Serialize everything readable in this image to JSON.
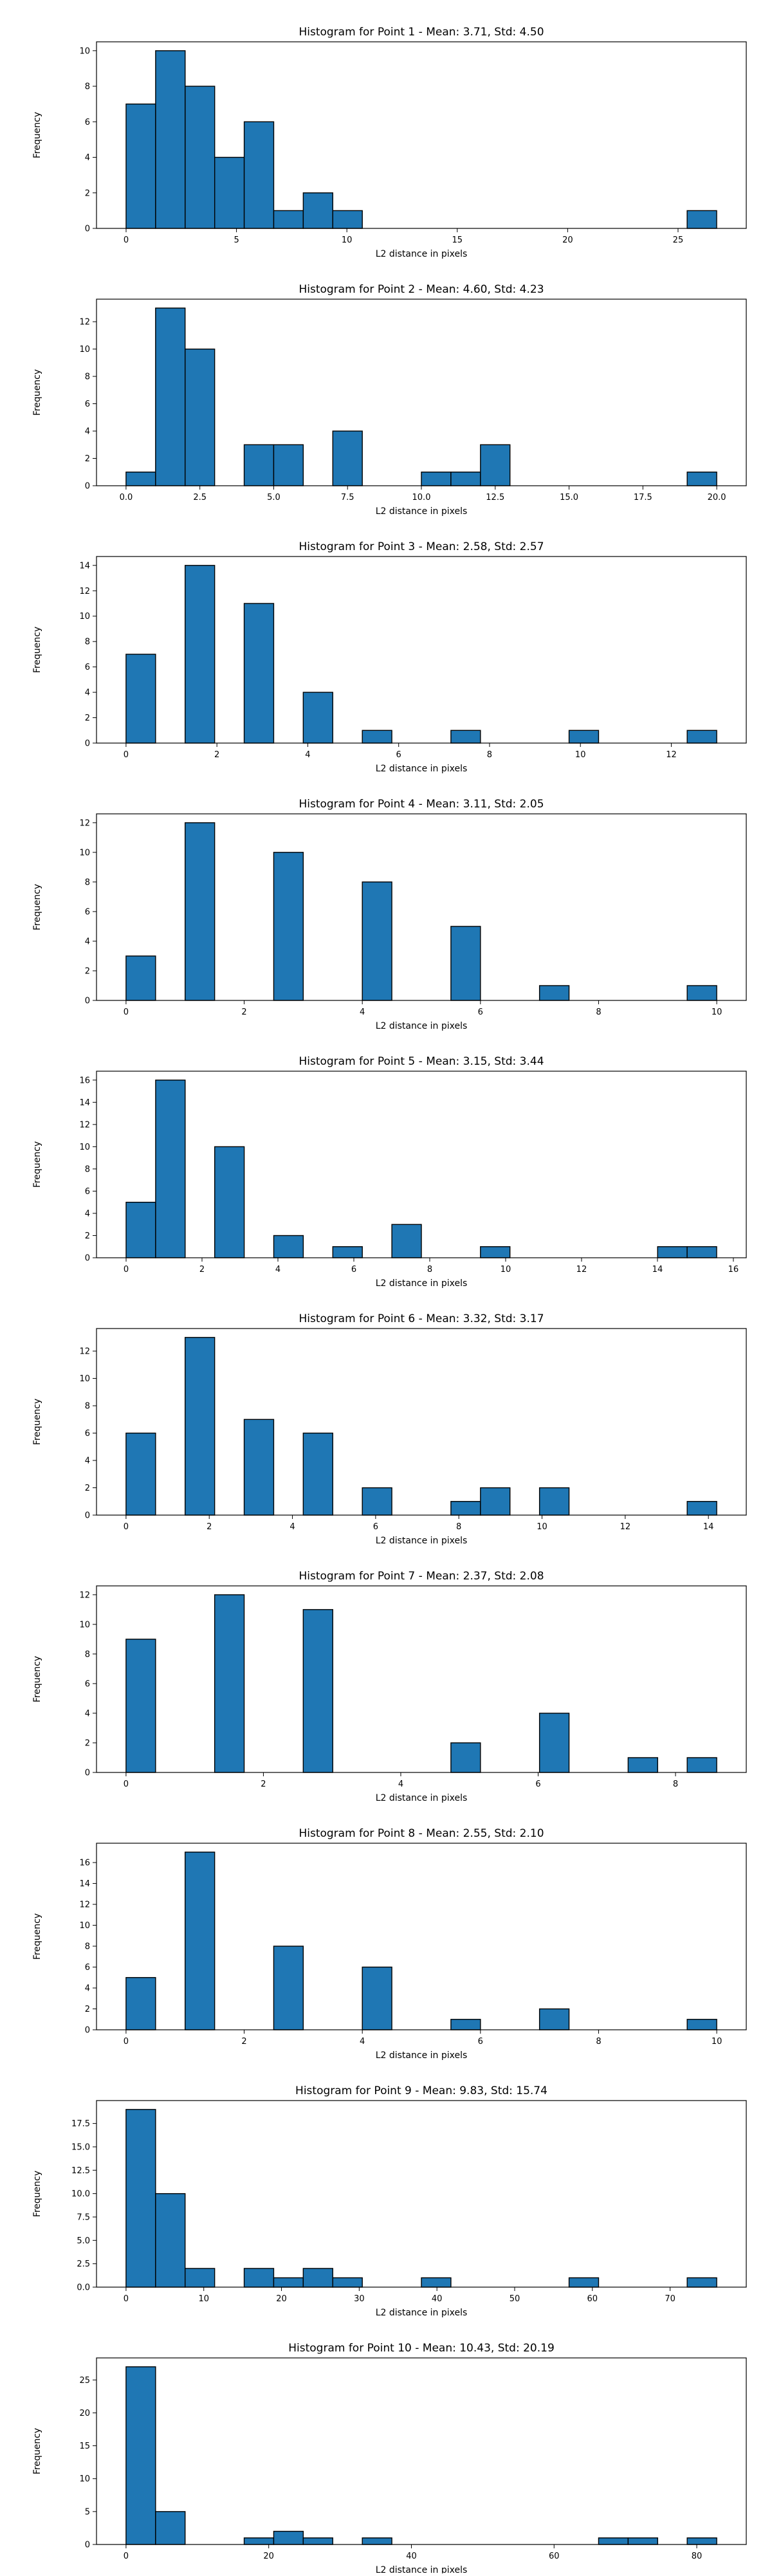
{
  "chart_data": [
    {
      "type": "bar",
      "title": "Histogram for Point 1 - Mean: 3.71, Std: 4.50",
      "xlabel": "L2 distance in pixels",
      "ylabel": "Frequency",
      "xlim": [
        -1.34,
        28.09
      ],
      "ylim": [
        0,
        10.5
      ],
      "xticks": [
        0,
        5,
        10,
        15,
        20,
        25
      ],
      "xtick_labels": [
        "0",
        "5",
        "10",
        "15",
        "20",
        "25"
      ],
      "yticks": [
        0,
        2,
        4,
        6,
        8,
        10
      ],
      "ytick_labels": [
        "0",
        "2",
        "4",
        "6",
        "8",
        "10"
      ],
      "bin_edges": [
        0,
        1.3375,
        2.675,
        4.0125,
        5.35,
        6.6875,
        8.025,
        9.3625,
        10.7,
        12.0375,
        13.375,
        14.7125,
        16.05,
        17.3875,
        18.725,
        20.0625,
        21.4,
        22.7375,
        24.075,
        25.4125,
        26.75
      ],
      "values": [
        7,
        10,
        8,
        4,
        6,
        1,
        2,
        1,
        0,
        0,
        0,
        0,
        0,
        0,
        0,
        0,
        0,
        0,
        0,
        1
      ],
      "grid": false,
      "bar_color": "#1f77b4"
    },
    {
      "type": "bar",
      "title": "Histogram for Point 2 - Mean: 4.60, Std: 4.23",
      "xlabel": "L2 distance in pixels",
      "ylabel": "Frequency",
      "xlim": [
        -1.0,
        21.0
      ],
      "ylim": [
        0,
        13.65
      ],
      "xticks": [
        0,
        2.5,
        5,
        7.5,
        10,
        12.5,
        15,
        17.5,
        20
      ],
      "xtick_labels": [
        "0.0",
        "2.5",
        "5.0",
        "7.5",
        "10.0",
        "12.5",
        "15.0",
        "17.5",
        "20.0"
      ],
      "yticks": [
        0,
        2,
        4,
        6,
        8,
        10,
        12
      ],
      "ytick_labels": [
        "0",
        "2",
        "4",
        "6",
        "8",
        "10",
        "12"
      ],
      "bin_edges": [
        0,
        1,
        2,
        3,
        4,
        5,
        6,
        7,
        8,
        9,
        10,
        11,
        12,
        13,
        14,
        15,
        16,
        17,
        18,
        19,
        20
      ],
      "values": [
        1,
        13,
        10,
        0,
        3,
        3,
        0,
        4,
        0,
        0,
        1,
        1,
        3,
        0,
        0,
        0,
        0,
        0,
        0,
        1
      ],
      "grid": false,
      "bar_color": "#1f77b4"
    },
    {
      "type": "bar",
      "title": "Histogram for Point 3 - Mean: 2.58, Std: 2.57",
      "xlabel": "L2 distance in pixels",
      "ylabel": "Frequency",
      "xlim": [
        -0.65,
        13.65
      ],
      "ylim": [
        0,
        14.7
      ],
      "xticks": [
        0,
        2,
        4,
        6,
        8,
        10,
        12
      ],
      "xtick_labels": [
        "0",
        "2",
        "4",
        "6",
        "8",
        "10",
        "12"
      ],
      "yticks": [
        0,
        2,
        4,
        6,
        8,
        10,
        12,
        14
      ],
      "ytick_labels": [
        "0",
        "2",
        "4",
        "6",
        "8",
        "10",
        "12",
        "14"
      ],
      "bin_edges": [
        0,
        0.65,
        1.3,
        1.95,
        2.6,
        3.25,
        3.9,
        4.55,
        5.2,
        5.85,
        6.5,
        7.15,
        7.8,
        8.45,
        9.1,
        9.75,
        10.4,
        11.05,
        11.7,
        12.35,
        13.0
      ],
      "values": [
        7,
        0,
        14,
        0,
        11,
        0,
        4,
        0,
        1,
        0,
        0,
        1,
        0,
        0,
        0,
        1,
        0,
        0,
        0,
        1
      ],
      "grid": false,
      "bar_color": "#1f77b4"
    },
    {
      "type": "bar",
      "title": "Histogram for Point 4 - Mean: 3.11, Std: 2.05",
      "xlabel": "L2 distance in pixels",
      "ylabel": "Frequency",
      "xlim": [
        -0.5,
        10.5
      ],
      "ylim": [
        0,
        12.6
      ],
      "xticks": [
        0,
        2,
        4,
        6,
        8,
        10
      ],
      "xtick_labels": [
        "0",
        "2",
        "4",
        "6",
        "8",
        "10"
      ],
      "yticks": [
        0,
        2,
        4,
        6,
        8,
        10,
        12
      ],
      "ytick_labels": [
        "0",
        "2",
        "4",
        "6",
        "8",
        "10",
        "12"
      ],
      "bin_edges": [
        0,
        0.5,
        1,
        1.5,
        2,
        2.5,
        3,
        3.5,
        4,
        4.5,
        5,
        5.5,
        6,
        6.5,
        7,
        7.5,
        8,
        8.5,
        9,
        9.5,
        10
      ],
      "values": [
        3,
        0,
        12,
        0,
        0,
        10,
        0,
        0,
        8,
        0,
        0,
        5,
        0,
        0,
        1,
        0,
        0,
        0,
        0,
        1
      ],
      "grid": false,
      "bar_color": "#1f77b4"
    },
    {
      "type": "bar",
      "title": "Histogram for Point 5 - Mean: 3.15, Std: 3.44",
      "xlabel": "L2 distance in pixels",
      "ylabel": "Frequency",
      "xlim": [
        -0.78,
        16.34
      ],
      "ylim": [
        0,
        16.8
      ],
      "xticks": [
        0,
        2,
        4,
        6,
        8,
        10,
        12,
        14,
        16
      ],
      "xtick_labels": [
        "0",
        "2",
        "4",
        "6",
        "8",
        "10",
        "12",
        "14",
        "16"
      ],
      "yticks": [
        0,
        2,
        4,
        6,
        8,
        10,
        12,
        14,
        16
      ],
      "ytick_labels": [
        "0",
        "2",
        "4",
        "6",
        "8",
        "10",
        "12",
        "14",
        "16"
      ],
      "bin_edges": [
        0,
        0.778,
        1.556,
        2.334,
        3.112,
        3.89,
        4.668,
        5.446,
        6.224,
        7.002,
        7.78,
        8.558,
        9.336,
        10.114,
        10.892,
        11.67,
        12.448,
        13.226,
        14.004,
        14.782,
        15.56
      ],
      "values": [
        5,
        16,
        0,
        10,
        0,
        2,
        0,
        1,
        0,
        3,
        0,
        0,
        1,
        0,
        0,
        0,
        0,
        0,
        1,
        1
      ],
      "grid": false,
      "bar_color": "#1f77b4"
    },
    {
      "type": "bar",
      "title": "Histogram for Point 6 - Mean: 3.32, Std: 3.17",
      "xlabel": "L2 distance in pixels",
      "ylabel": "Frequency",
      "xlim": [
        -0.71,
        14.91
      ],
      "ylim": [
        0,
        13.65
      ],
      "xticks": [
        0,
        2,
        4,
        6,
        8,
        10,
        12,
        14
      ],
      "xtick_labels": [
        "0",
        "2",
        "4",
        "6",
        "8",
        "10",
        "12",
        "14"
      ],
      "yticks": [
        0,
        2,
        4,
        6,
        8,
        10,
        12
      ],
      "ytick_labels": [
        "0",
        "2",
        "4",
        "6",
        "8",
        "10",
        "12"
      ],
      "bin_edges": [
        0,
        0.71,
        1.42,
        2.13,
        2.84,
        3.55,
        4.26,
        4.97,
        5.68,
        6.39,
        7.1,
        7.81,
        8.52,
        9.23,
        9.94,
        10.65,
        11.36,
        12.07,
        12.78,
        13.49,
        14.2
      ],
      "values": [
        6,
        0,
        13,
        0,
        7,
        0,
        6,
        0,
        2,
        0,
        0,
        1,
        2,
        0,
        2,
        0,
        0,
        0,
        0,
        1
      ],
      "grid": false,
      "bar_color": "#1f77b4"
    },
    {
      "type": "bar",
      "title": "Histogram for Point 7 - Mean: 2.37, Std: 2.08",
      "xlabel": "L2 distance in pixels",
      "ylabel": "Frequency",
      "xlim": [
        -0.43,
        9.03
      ],
      "ylim": [
        0,
        12.6
      ],
      "xticks": [
        0,
        2,
        4,
        6,
        8
      ],
      "xtick_labels": [
        "0",
        "2",
        "4",
        "6",
        "8"
      ],
      "yticks": [
        0,
        2,
        4,
        6,
        8,
        10,
        12
      ],
      "ytick_labels": [
        "0",
        "2",
        "4",
        "6",
        "8",
        "10",
        "12"
      ],
      "bin_edges": [
        0,
        0.43,
        0.86,
        1.29,
        1.72,
        2.15,
        2.58,
        3.01,
        3.44,
        3.87,
        4.3,
        4.73,
        5.16,
        5.59,
        6.02,
        6.45,
        6.88,
        7.31,
        7.74,
        8.17,
        8.6
      ],
      "values": [
        9,
        0,
        0,
        12,
        0,
        0,
        11,
        0,
        0,
        0,
        0,
        2,
        0,
        0,
        4,
        0,
        0,
        1,
        0,
        1
      ],
      "grid": false,
      "bar_color": "#1f77b4"
    },
    {
      "type": "bar",
      "title": "Histogram for Point 8 - Mean: 2.55, Std: 2.10",
      "xlabel": "L2 distance in pixels",
      "ylabel": "Frequency",
      "xlim": [
        -0.5,
        10.5
      ],
      "ylim": [
        0,
        17.85
      ],
      "xticks": [
        0,
        2,
        4,
        6,
        8,
        10
      ],
      "xtick_labels": [
        "0",
        "2",
        "4",
        "6",
        "8",
        "10"
      ],
      "yticks": [
        0,
        2,
        4,
        6,
        8,
        10,
        12,
        14,
        16
      ],
      "ytick_labels": [
        "0",
        "2",
        "4",
        "6",
        "8",
        "10",
        "12",
        "14",
        "16"
      ],
      "bin_edges": [
        0,
        0.5,
        1,
        1.5,
        2,
        2.5,
        3,
        3.5,
        4,
        4.5,
        5,
        5.5,
        6,
        6.5,
        7,
        7.5,
        8,
        8.5,
        9,
        9.5,
        10
      ],
      "values": [
        5,
        0,
        17,
        0,
        0,
        8,
        0,
        0,
        6,
        0,
        0,
        1,
        0,
        0,
        2,
        0,
        0,
        0,
        0,
        1
      ],
      "grid": false,
      "bar_color": "#1f77b4"
    },
    {
      "type": "bar",
      "title": "Histogram for Point 9 - Mean: 9.83, Std: 15.74",
      "xlabel": "L2 distance in pixels",
      "ylabel": "Frequency",
      "xlim": [
        -3.8,
        79.8
      ],
      "ylim": [
        0,
        19.95
      ],
      "xticks": [
        0,
        10,
        20,
        30,
        40,
        50,
        60,
        70
      ],
      "xtick_labels": [
        "0",
        "10",
        "20",
        "30",
        "40",
        "50",
        "60",
        "70"
      ],
      "yticks": [
        0,
        2.5,
        5,
        7.5,
        10,
        12.5,
        15,
        17.5
      ],
      "ytick_labels": [
        "0.0",
        "2.5",
        "5.0",
        "7.5",
        "10.0",
        "12.5",
        "15.0",
        "17.5"
      ],
      "bin_edges": [
        0,
        3.8,
        7.6,
        11.4,
        15.2,
        19,
        22.8,
        26.6,
        30.4,
        34.2,
        38,
        41.8,
        45.6,
        49.4,
        53.2,
        57,
        60.8,
        64.6,
        68.4,
        72.2,
        76.0
      ],
      "values": [
        19,
        10,
        2,
        0,
        2,
        1,
        2,
        1,
        0,
        0,
        1,
        0,
        0,
        0,
        0,
        1,
        0,
        0,
        0,
        1
      ],
      "grid": false,
      "bar_color": "#1f77b4"
    },
    {
      "type": "bar",
      "title": "Histogram for Point 10 - Mean: 10.43, Std: 20.19",
      "xlabel": "L2 distance in pixels",
      "ylabel": "Frequency",
      "xlim": [
        -4.14,
        86.94
      ],
      "ylim": [
        0,
        28.35
      ],
      "xticks": [
        0,
        20,
        40,
        60,
        80
      ],
      "xtick_labels": [
        "0",
        "20",
        "40",
        "60",
        "80"
      ],
      "yticks": [
        0,
        5,
        10,
        15,
        20,
        25
      ],
      "ytick_labels": [
        "0",
        "5",
        "10",
        "15",
        "20",
        "25"
      ],
      "bin_edges": [
        0,
        4.14,
        8.28,
        12.42,
        16.56,
        20.7,
        24.84,
        28.98,
        33.12,
        37.26,
        41.4,
        45.54,
        49.68,
        53.82,
        57.96,
        62.1,
        66.24,
        70.38,
        74.52,
        78.66,
        82.8
      ],
      "values": [
        27,
        5,
        0,
        0,
        1,
        2,
        1,
        0,
        1,
        0,
        0,
        0,
        0,
        0,
        0,
        0,
        1,
        1,
        0,
        1
      ],
      "grid": false,
      "bar_color": "#1f77b4"
    }
  ]
}
